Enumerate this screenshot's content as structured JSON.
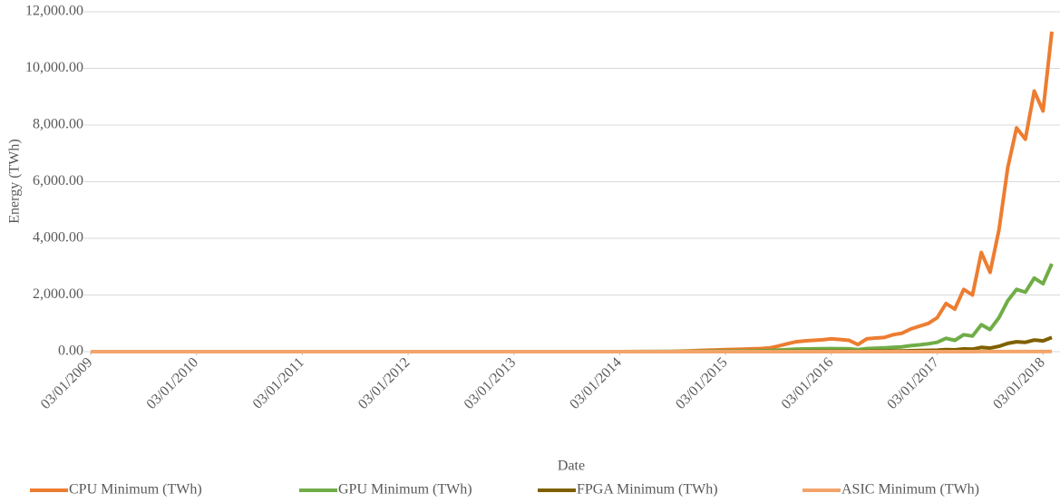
{
  "chart_data": {
    "type": "line",
    "x_label": "Date",
    "y_label": "Energy (TWh)",
    "x": [
      "2009-01",
      "2010-01",
      "2011-01",
      "2012-01",
      "2013-01",
      "2014-01",
      "2014-07",
      "2014-08",
      "2014-09",
      "2014-10",
      "2014-11",
      "2014-12",
      "2015-01",
      "2015-02",
      "2015-03",
      "2015-04",
      "2015-05",
      "2015-06",
      "2015-07",
      "2015-08",
      "2015-09",
      "2015-10",
      "2015-11",
      "2015-12",
      "2016-01",
      "2016-02",
      "2016-03",
      "2016-04",
      "2016-05",
      "2016-06",
      "2016-07",
      "2016-08",
      "2016-09",
      "2016-10",
      "2016-11",
      "2016-12",
      "2017-01",
      "2017-02",
      "2017-03",
      "2017-04",
      "2017-05",
      "2017-06",
      "2017-07",
      "2017-08",
      "2017-09",
      "2017-10",
      "2017-11",
      "2017-12",
      "2018-01",
      "2018-02"
    ],
    "series": [
      {
        "name": "CPU Minimum (TWh)",
        "color": "#ed7d31",
        "values": [
          0,
          0,
          0,
          0,
          0,
          0,
          10,
          20,
          30,
          40,
          50,
          60,
          70,
          80,
          90,
          100,
          110,
          130,
          200,
          280,
          350,
          380,
          400,
          420,
          450,
          430,
          400,
          250,
          450,
          480,
          500,
          600,
          650,
          800,
          900,
          1000,
          1200,
          1700,
          1500,
          2200,
          2000,
          3500,
          2800,
          4300,
          6500,
          7900,
          7500,
          9200,
          8500,
          11300
        ]
      },
      {
        "name": "GPU Minimum (TWh)",
        "color": "#70ad47",
        "values": [
          0,
          0,
          0,
          0,
          0,
          0,
          5,
          8,
          10,
          12,
          15,
          18,
          20,
          22,
          25,
          28,
          32,
          40,
          55,
          70,
          85,
          95,
          100,
          105,
          110,
          105,
          100,
          70,
          110,
          120,
          130,
          150,
          170,
          210,
          240,
          280,
          330,
          470,
          400,
          600,
          550,
          950,
          780,
          1200,
          1800,
          2200,
          2100,
          2600,
          2400,
          3100
        ]
      },
      {
        "name": "FPGA Minimum (TWh)",
        "color": "#7f6000",
        "values": [
          0,
          0,
          0,
          0,
          0,
          0,
          1,
          1,
          1,
          2,
          2,
          2,
          3,
          3,
          4,
          4,
          5,
          6,
          8,
          10,
          12,
          14,
          15,
          16,
          17,
          16,
          15,
          11,
          17,
          19,
          20,
          23,
          26,
          33,
          38,
          45,
          52,
          75,
          64,
          95,
          88,
          150,
          125,
          190,
          290,
          350,
          330,
          410,
          380,
          500
        ]
      },
      {
        "name": "ASIC Minimum (TWh)",
        "color": "#f4a46a",
        "values": [
          0,
          0,
          0,
          0,
          0,
          0,
          0,
          0,
          0,
          0,
          0,
          0,
          0,
          0,
          0,
          0,
          0,
          0,
          0,
          0,
          0,
          0,
          0,
          0,
          0,
          0,
          0,
          0,
          0,
          0,
          0,
          0,
          0,
          0,
          0,
          0,
          1,
          1,
          1,
          1,
          1,
          2,
          2,
          2,
          3,
          3,
          3,
          4,
          4,
          5
        ]
      }
    ],
    "xlim": [
      "2009-01",
      "2018-02"
    ],
    "xticks": [
      {
        "value": "2009-01",
        "label": "03/01/2009"
      },
      {
        "value": "2010-01",
        "label": "03/01/2010"
      },
      {
        "value": "2011-01",
        "label": "03/01/2011"
      },
      {
        "value": "2012-01",
        "label": "03/01/2012"
      },
      {
        "value": "2013-01",
        "label": "03/01/2013"
      },
      {
        "value": "2014-01",
        "label": "03/01/2014"
      },
      {
        "value": "2015-01",
        "label": "03/01/2015"
      },
      {
        "value": "2016-01",
        "label": "03/01/2016"
      },
      {
        "value": "2017-01",
        "label": "03/01/2017"
      },
      {
        "value": "2018-01",
        "label": "03/01/2018"
      }
    ],
    "ylim": [
      0,
      12000
    ],
    "yticks": [
      {
        "value": 0,
        "label": "0.00"
      },
      {
        "value": 2000,
        "label": "2,000.00"
      },
      {
        "value": 4000,
        "label": "4,000.00"
      },
      {
        "value": 6000,
        "label": "6,000.00"
      },
      {
        "value": 8000,
        "label": "8,000.00"
      },
      {
        "value": 10000,
        "label": "10,000.00"
      },
      {
        "value": 12000,
        "label": "12,000.00"
      }
    ],
    "grid": true,
    "legend": "bottom"
  }
}
